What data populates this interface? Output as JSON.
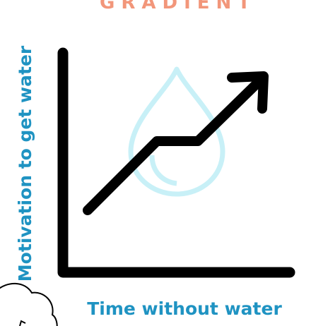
{
  "title": "GRADIENT",
  "y_axis_label": "Motivation to get water",
  "x_axis_label": "Time without water"
}
